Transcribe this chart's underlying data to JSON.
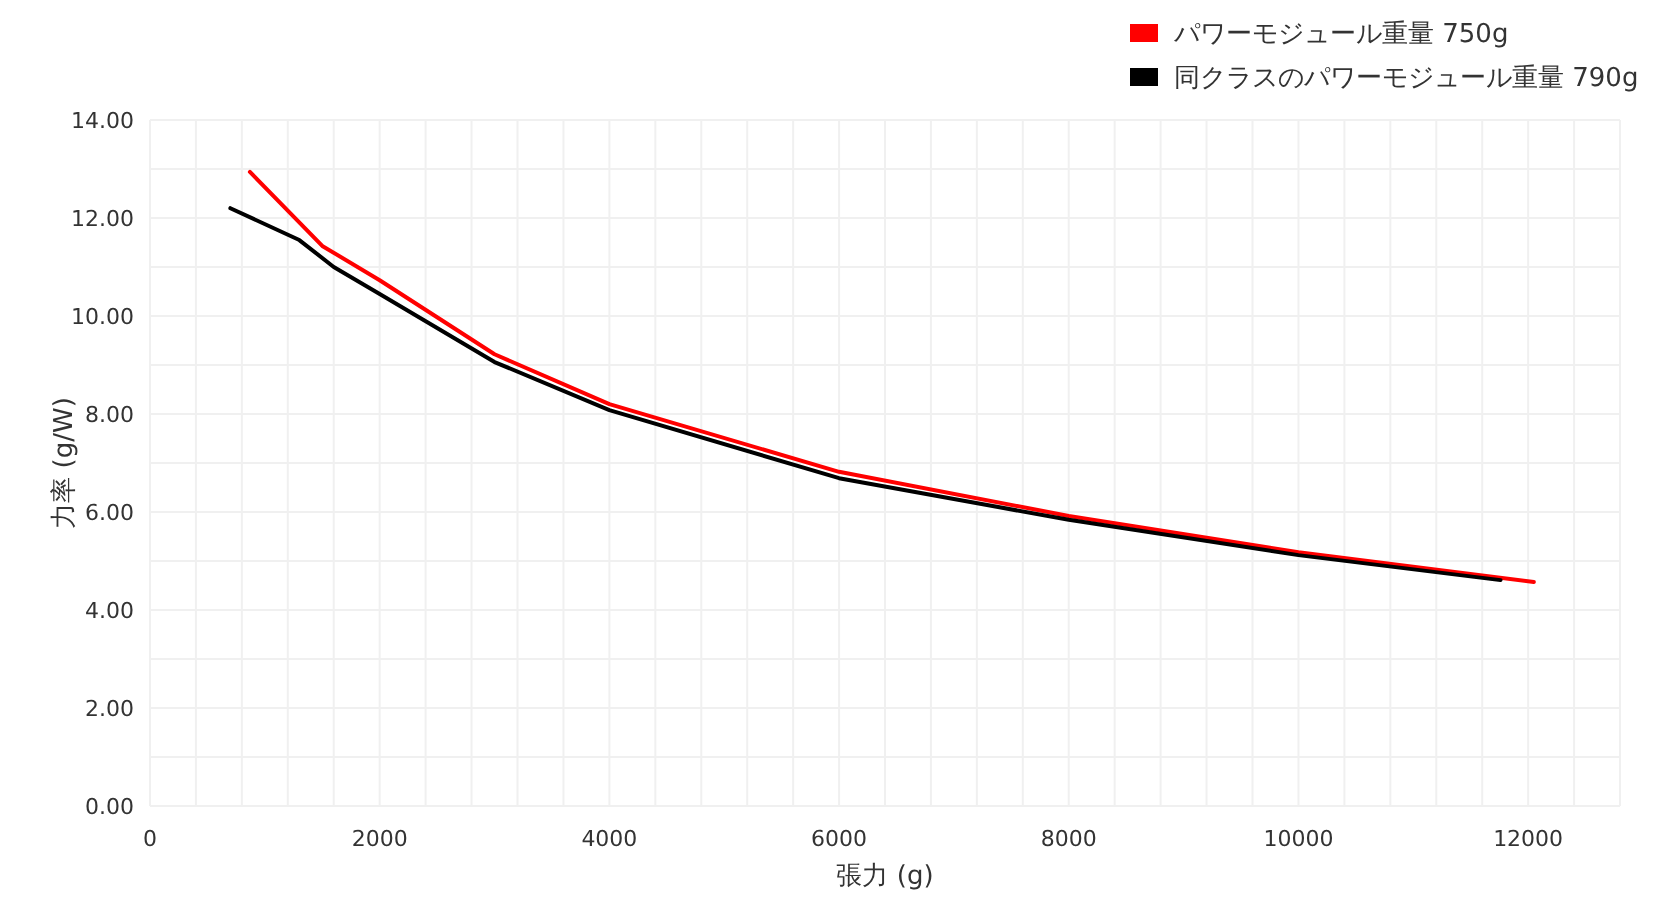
{
  "chart_data": {
    "type": "line",
    "xlabel": "張力 (g)",
    "ylabel": "力率 (g/W)",
    "xlim": [
      0,
      12800
    ],
    "ylim": [
      0,
      14
    ],
    "xticks": [
      0,
      2000,
      4000,
      6000,
      8000,
      10000,
      12000
    ],
    "yticks": [
      {
        "value": 0,
        "label": "0.00"
      },
      {
        "value": 2,
        "label": "2.00"
      },
      {
        "value": 4,
        "label": "4.00"
      },
      {
        "value": 6,
        "label": "6.00"
      },
      {
        "value": 8,
        "label": "8.00"
      },
      {
        "value": 10,
        "label": "10.00"
      },
      {
        "value": 12,
        "label": "12.00"
      },
      {
        "value": 14,
        "label": "14.00"
      }
    ],
    "grid": true,
    "legend": "top right",
    "marker": "none",
    "line_style": "solid",
    "series": [
      {
        "name": "パワーモジュール重量 750g",
        "color": "#ff0000",
        "x": [
          870,
          1500,
          2000,
          3000,
          4000,
          6000,
          8000,
          10000,
          12050
        ],
        "values": [
          12.94,
          11.43,
          10.73,
          9.22,
          8.2,
          6.82,
          5.92,
          5.18,
          4.57
        ]
      },
      {
        "name": "同クラスのパワーモジュール重量 790g",
        "color": "#000000",
        "x": [
          700,
          1300,
          1600,
          2000,
          3000,
          4000,
          6000,
          8000,
          10000,
          11760
        ],
        "values": [
          12.2,
          11.55,
          11.0,
          10.45,
          9.06,
          8.08,
          6.69,
          5.84,
          5.12,
          4.61
        ]
      }
    ]
  }
}
